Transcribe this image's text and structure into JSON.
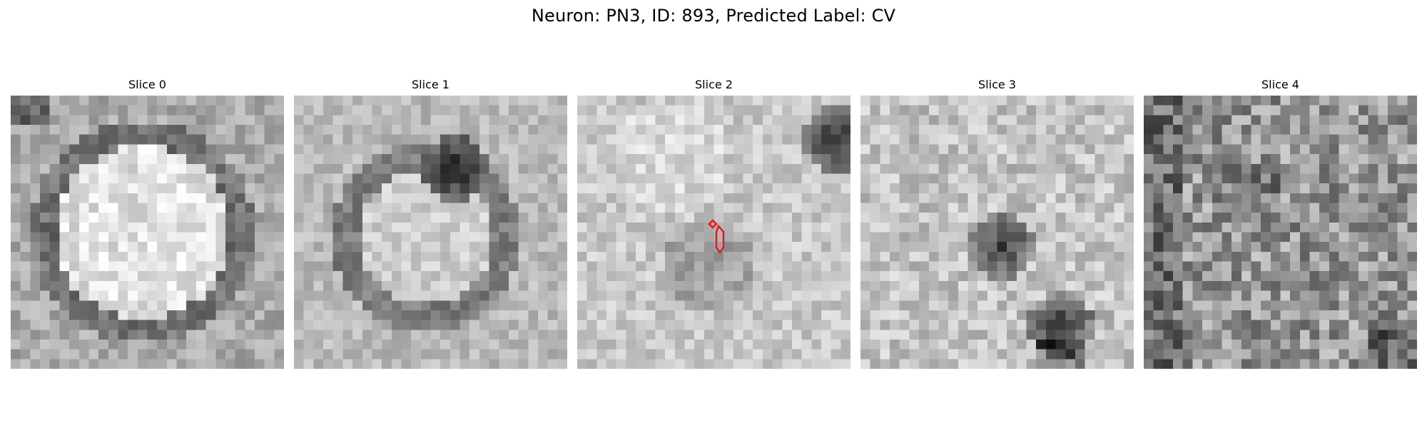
{
  "figure": {
    "title": "Neuron: PN3, ID: 893, Predicted Label: CV"
  },
  "panels": [
    {
      "title": "Slice 0",
      "pattern": "ring"
    },
    {
      "title": "Slice 1",
      "pattern": "dark-blob-ring"
    },
    {
      "title": "Slice 2",
      "pattern": "light-field-with-annotation",
      "annotation_color": "#e31a1c"
    },
    {
      "title": "Slice 3",
      "pattern": "mottled-dark-spots"
    },
    {
      "title": "Slice 4",
      "pattern": "noisy-dark"
    }
  ],
  "colormap": "gray"
}
